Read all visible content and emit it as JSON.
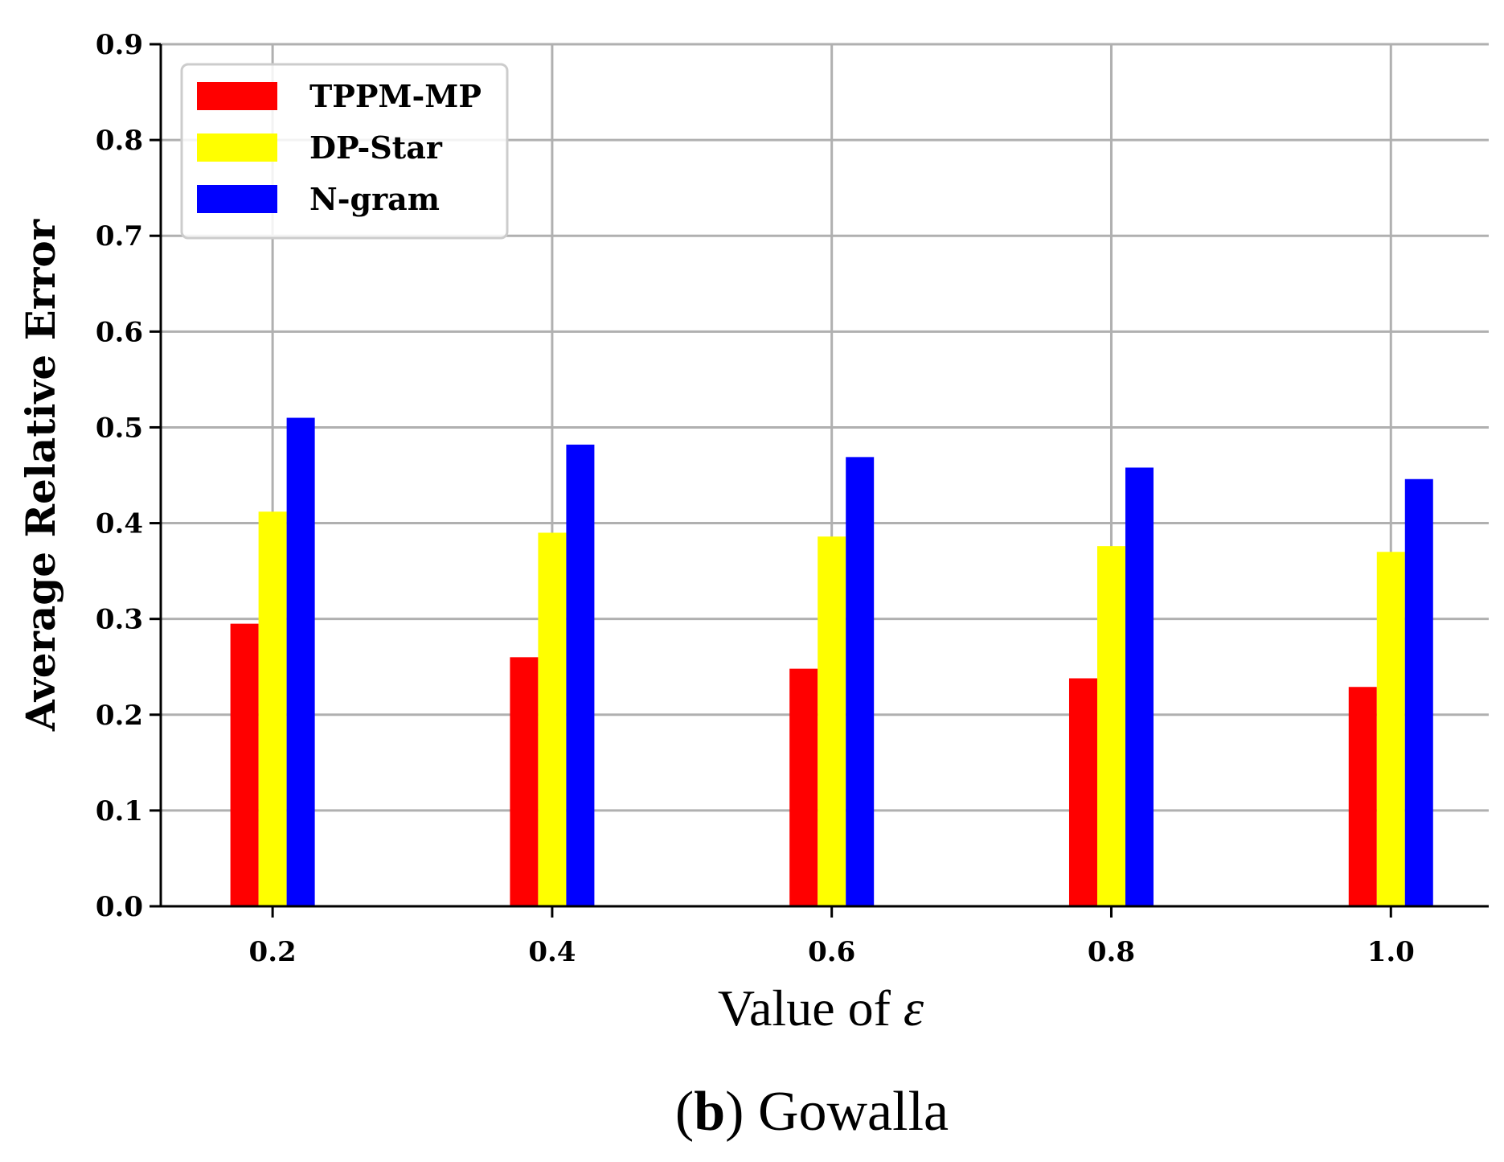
{
  "chart_data": {
    "type": "bar",
    "categories": [
      "0.2",
      "0.4",
      "0.6",
      "0.8",
      "1.0"
    ],
    "x": [
      0.2,
      0.4,
      0.6,
      0.8,
      1.0
    ],
    "series": [
      {
        "name": "TPPM-MP",
        "color": "#ff0000",
        "values": [
          0.295,
          0.26,
          0.248,
          0.238,
          0.229
        ]
      },
      {
        "name": "DP-Star",
        "color": "#ffff00",
        "values": [
          0.412,
          0.39,
          0.386,
          0.376,
          0.37
        ]
      },
      {
        "name": "N-gram",
        "color": "#0000ff",
        "values": [
          0.51,
          0.482,
          0.469,
          0.458,
          0.446
        ]
      }
    ],
    "title": "",
    "xlabel_prefix": "Value of ",
    "xlabel_symbol": "ε",
    "ylabel": "Average Relative Error",
    "ylim": [
      0,
      0.9
    ],
    "xlim": [
      0.12,
      1.07
    ],
    "yticks": [
      "0.0",
      "0.1",
      "0.2",
      "0.3",
      "0.4",
      "0.5",
      "0.6",
      "0.7",
      "0.8",
      "0.9"
    ],
    "grid": true,
    "legend_position": "top-left",
    "caption_bold": "b",
    "caption_rest": "Gowalla"
  }
}
